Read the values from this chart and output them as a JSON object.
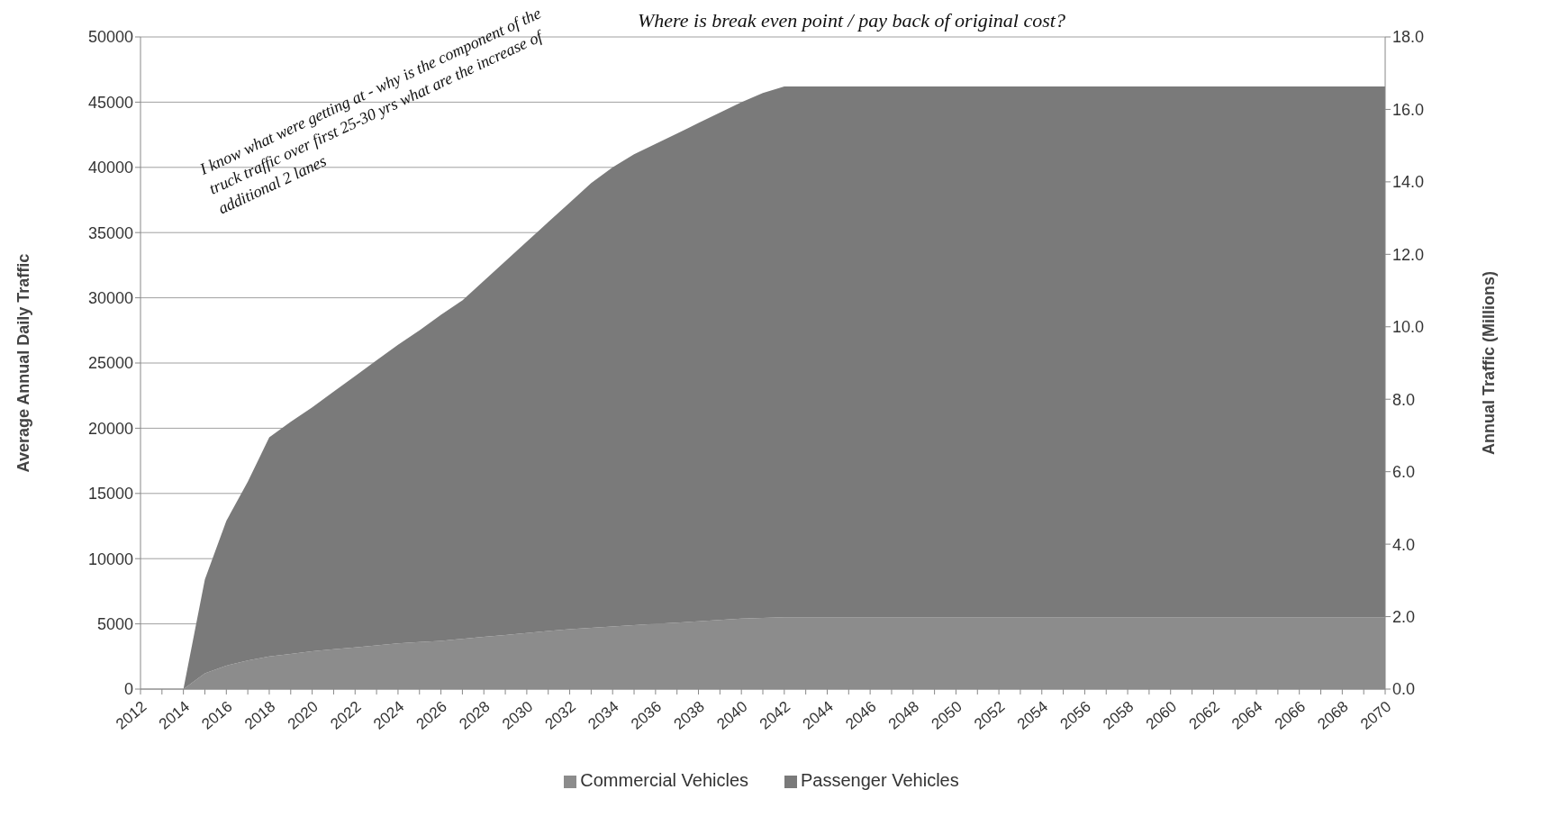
{
  "chart_data": {
    "type": "area",
    "stacked": true,
    "ylabel": "Average Annual Daily Traffic",
    "y2label": "Annual Traffic (Millions)",
    "annotations": [
      "Where is break even point / pay back of original cost?",
      "I know what were getting at - why is the component of the truck traffic over first 25-30 yrs what are the increase of additional 2 lanes"
    ],
    "x": [
      2014,
      2015,
      2016,
      2017,
      2018,
      2019,
      2020,
      2021,
      2022,
      2023,
      2024,
      2025,
      2026,
      2027,
      2028,
      2029,
      2030,
      2031,
      2032,
      2033,
      2034,
      2035,
      2036,
      2037,
      2038,
      2039,
      2040,
      2041,
      2042,
      2043,
      2044,
      2045,
      2046,
      2047,
      2048,
      2049,
      2050,
      2051,
      2052,
      2053,
      2054,
      2055,
      2056,
      2057,
      2058,
      2059,
      2060,
      2061,
      2062,
      2063,
      2064,
      2065,
      2066,
      2067,
      2068,
      2069,
      2070
    ],
    "series": [
      {
        "name": "Commercial Vehicles",
        "color": "#8c8c8c",
        "values": [
          0,
          1200,
          1800,
          2200,
          2500,
          2700,
          2900,
          3050,
          3200,
          3350,
          3500,
          3600,
          3700,
          3850,
          4000,
          4150,
          4300,
          4450,
          4600,
          4700,
          4800,
          4900,
          5000,
          5100,
          5200,
          5300,
          5400,
          5450,
          5500,
          5500,
          5500,
          5500,
          5500,
          5500,
          5500,
          5500,
          5500,
          5500,
          5500,
          5500,
          5500,
          5500,
          5500,
          5500,
          5500,
          5500,
          5500,
          5500,
          5500,
          5500,
          5500,
          5500,
          5500,
          5500,
          5500,
          5500,
          5500
        ]
      },
      {
        "name": "Passenger Vehicles",
        "color": "#7a7a7a",
        "values": [
          0,
          7200,
          11100,
          13700,
          16800,
          17800,
          18700,
          19750,
          20800,
          21850,
          22900,
          23900,
          25000,
          25950,
          27300,
          28650,
          30000,
          31350,
          32700,
          34100,
          35200,
          36100,
          36800,
          37500,
          38200,
          38900,
          39600,
          40250,
          40700,
          40700,
          40700,
          40700,
          40700,
          40700,
          40700,
          40700,
          40700,
          40700,
          40700,
          40700,
          40700,
          40700,
          40700,
          40700,
          40700,
          40700,
          40700,
          40700,
          40700,
          40700,
          40700,
          40700,
          40700,
          40700,
          40700,
          40700,
          40700
        ]
      }
    ],
    "xlim": [
      2012,
      2070
    ],
    "xticks": [
      2012,
      {
        "value": 2013,
        "label": null
      },
      2014,
      {
        "value": 2015,
        "label": null
      },
      2016,
      {
        "value": 2017,
        "label": null
      },
      2018,
      {
        "value": 2019,
        "label": null
      },
      2020,
      {
        "value": 2021,
        "label": null
      },
      2022,
      {
        "value": 2023,
        "label": null
      },
      2024,
      {
        "value": 2025,
        "label": null
      },
      2026,
      {
        "value": 2027,
        "label": null
      },
      2028,
      {
        "value": 2029,
        "label": null
      },
      2030,
      {
        "value": 2031,
        "label": null
      },
      2032,
      {
        "value": 2033,
        "label": null
      },
      2034,
      {
        "value": 2035,
        "label": null
      },
      2036,
      {
        "value": 2037,
        "label": null
      },
      2038,
      {
        "value": 2039,
        "label": null
      },
      2040,
      {
        "value": 2041,
        "label": null
      },
      2042,
      {
        "value": 2043,
        "label": null
      },
      2044,
      {
        "value": 2045,
        "label": null
      },
      2046,
      {
        "value": 2047,
        "label": null
      },
      2048,
      {
        "value": 2049,
        "label": null
      },
      2050,
      {
        "value": 2051,
        "label": null
      },
      2052,
      {
        "value": 2053,
        "label": null
      },
      2054,
      {
        "value": 2055,
        "label": null
      },
      2056,
      {
        "value": 2057,
        "label": null
      },
      2058,
      {
        "value": 2059,
        "label": null
      },
      2060,
      {
        "value": 2061,
        "label": null
      },
      2062,
      {
        "value": 2063,
        "label": null
      },
      2064,
      {
        "value": 2065,
        "label": null
      },
      2066,
      {
        "value": 2067,
        "label": null
      },
      2068,
      {
        "value": 2069,
        "label": null
      },
      2070
    ],
    "ylim": [
      0,
      50000
    ],
    "yticks": [
      0,
      5000,
      10000,
      15000,
      20000,
      25000,
      30000,
      35000,
      40000,
      45000,
      50000
    ],
    "y2lim": [
      0,
      18
    ],
    "y2ticks": [
      {
        "value": 0,
        "label": "0.0"
      },
      {
        "value": 2,
        "label": "2.0"
      },
      {
        "value": 4,
        "label": "4.0"
      },
      {
        "value": 6,
        "label": "6.0"
      },
      {
        "value": 8,
        "label": "8.0"
      },
      {
        "value": 10,
        "label": "10.0"
      },
      {
        "value": 12,
        "label": "12.0"
      },
      {
        "value": 14,
        "label": "14.0"
      },
      {
        "value": 16,
        "label": "16.0"
      },
      {
        "value": 18,
        "label": "18.0"
      }
    ],
    "grid": "y",
    "legend": "bottom"
  }
}
